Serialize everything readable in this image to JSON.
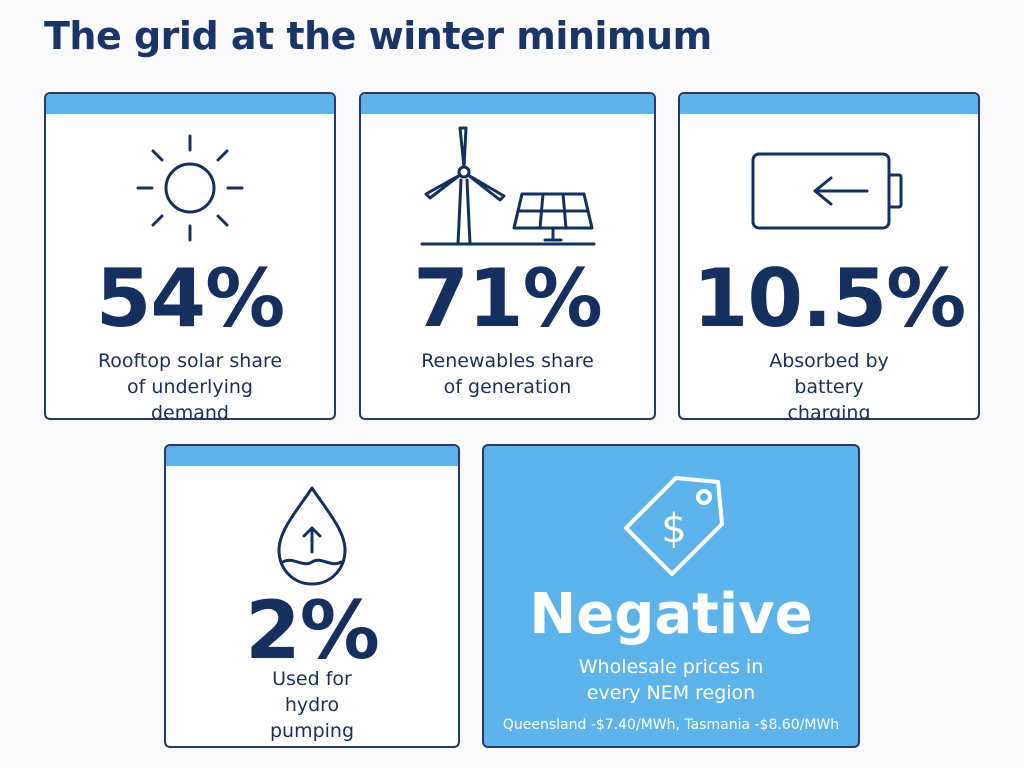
{
  "title": "The grid at the winter minimum",
  "cards": [
    {
      "value": "54%",
      "label": "Rooftop solar share of underlying demand",
      "icon": "sun-icon"
    },
    {
      "value": "71%",
      "label": "Renewables share of generation",
      "icon": "wind-solar-icon"
    },
    {
      "value": "10.5%",
      "label": "Absorbed by battery charging",
      "icon": "battery-charging-icon"
    },
    {
      "value": "2%",
      "label": "Used for hydro pumping",
      "icon": "water-drop-icon"
    },
    {
      "value": "Negative",
      "label": "Wholesale prices in every NEM region",
      "note": "Queensland -$7.40/MWh, Tasmania -$8.60/MWh",
      "icon": "price-tag-icon"
    }
  ],
  "colors": {
    "navy": "#15305f",
    "accent": "#5db4ea",
    "background": "#fbfbfd"
  }
}
